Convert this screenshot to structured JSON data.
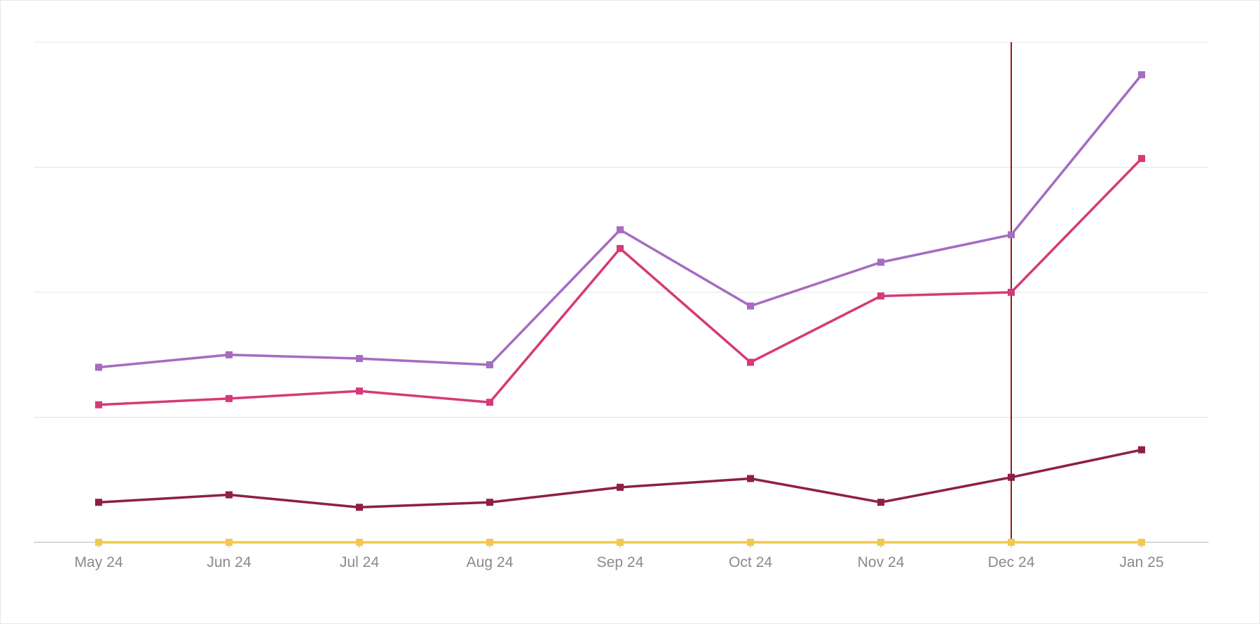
{
  "chart_data": {
    "type": "line",
    "categories": [
      "May 24",
      "Jun 24",
      "Jul 24",
      "Aug 24",
      "Sep 24",
      "Oct 24",
      "Nov 24",
      "Dec 24",
      "Jan 25"
    ],
    "ylim": [
      0,
      4
    ],
    "y_gridlines": [
      0,
      1,
      2,
      3,
      4
    ],
    "grid": true,
    "legend": "none",
    "highlighted_category": "Dec 24",
    "highlight_color": "#8b0000",
    "axis_color": "#cccccc",
    "grid_color": "#e3e3e3",
    "tick_label_color": "#8a8a8a",
    "series": [
      {
        "color": "#a56cc1",
        "values": [
          1.4,
          1.5,
          1.47,
          1.42,
          2.5,
          1.89,
          2.24,
          2.46,
          3.74
        ]
      },
      {
        "color": "#d63a78",
        "values": [
          1.1,
          1.15,
          1.21,
          1.12,
          2.35,
          1.44,
          1.97,
          2.0,
          3.07
        ]
      },
      {
        "color": "#8e1f4a",
        "values": [
          0.32,
          0.38,
          0.28,
          0.32,
          0.44,
          0.51,
          0.32,
          0.52,
          0.74
        ]
      },
      {
        "color": "#f2c94c",
        "values": [
          0,
          0,
          0,
          0,
          0,
          0,
          0,
          0,
          0
        ]
      }
    ]
  }
}
